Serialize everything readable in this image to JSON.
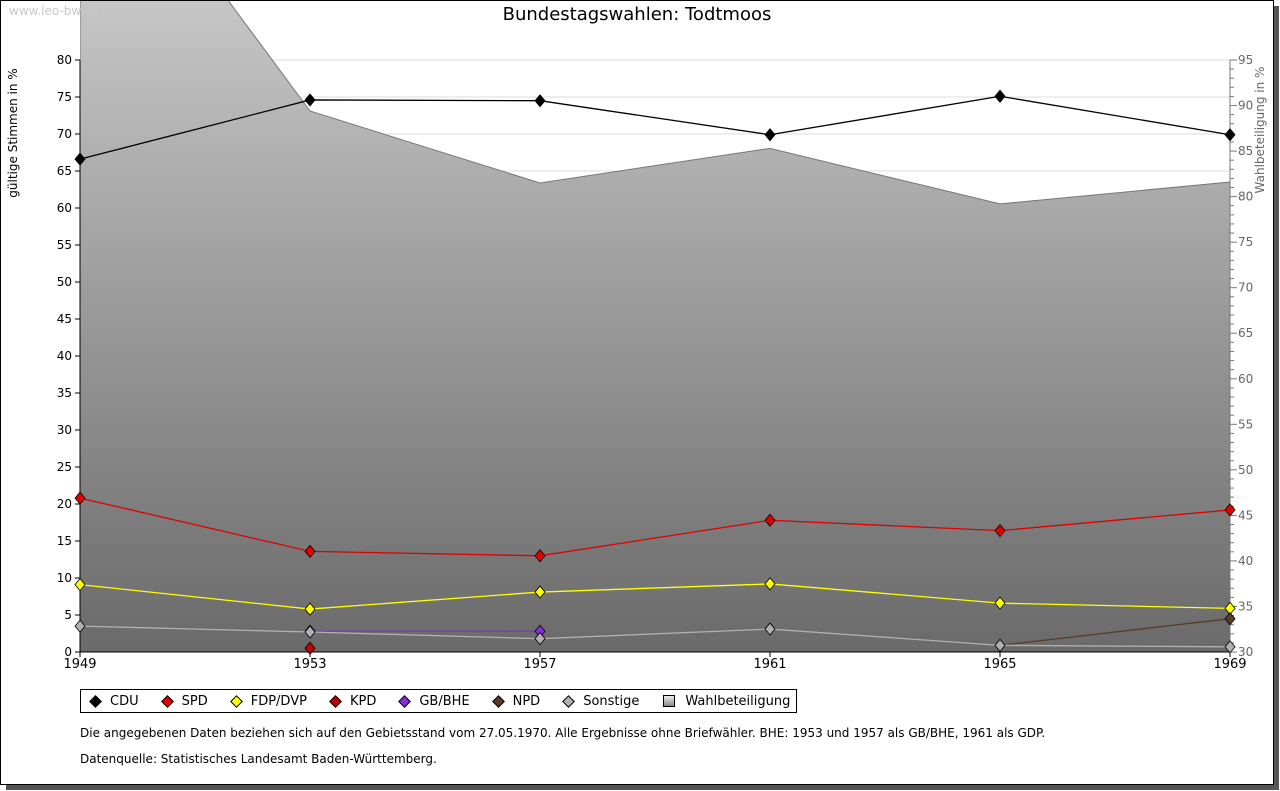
{
  "watermark": "www.leo-bw.de",
  "chart_data": {
    "type": "line",
    "title": "Bundestagswahlen: Todtmoos",
    "ylabel": "gültige Stimmen in %",
    "y2label": "Wahlbeteiligung in %",
    "ylim": [
      0,
      80
    ],
    "y2lim": [
      30,
      95
    ],
    "yticks": [
      0,
      5,
      10,
      15,
      20,
      25,
      30,
      35,
      40,
      45,
      50,
      55,
      60,
      65,
      70,
      75,
      80
    ],
    "y2ticks": [
      30,
      35,
      40,
      45,
      50,
      55,
      60,
      65,
      70,
      75,
      80,
      85,
      90,
      95
    ],
    "categories": [
      "1949",
      "1953",
      "1957",
      "1961",
      "1965",
      "1969"
    ],
    "series": [
      {
        "name": "Wahlbeteiligung",
        "axis": "right",
        "kind": "area",
        "color": "#999999",
        "values": [
          123.5,
          89.4,
          81.5,
          85.3,
          79.2,
          81.6
        ]
      },
      {
        "name": "CDU",
        "color": "#000000",
        "values": [
          66.6,
          74.6,
          74.5,
          69.9,
          75.1,
          69.9
        ]
      },
      {
        "name": "SPD",
        "color": "#e00000",
        "values": [
          20.8,
          13.6,
          13.0,
          17.8,
          16.4,
          19.2
        ]
      },
      {
        "name": "FDP/DVP",
        "color": "#ffff00",
        "values": [
          9.1,
          5.8,
          8.1,
          9.2,
          6.6,
          5.9
        ]
      },
      {
        "name": "KPD",
        "color": "#c00000",
        "values": [
          null,
          0.5,
          null,
          null,
          null,
          null
        ]
      },
      {
        "name": "GB/BHE",
        "color": "#8a2be2",
        "values": [
          null,
          2.8,
          2.8,
          null,
          null,
          null
        ]
      },
      {
        "name": "NPD",
        "color": "#5a3a28",
        "values": [
          null,
          null,
          null,
          null,
          0.9,
          4.5
        ]
      },
      {
        "name": "Sonstige",
        "color": "#b0b0b0",
        "values": [
          3.5,
          2.7,
          1.8,
          3.1,
          0.9,
          0.7
        ]
      }
    ],
    "legend": [
      "CDU",
      "SPD",
      "FDP/DVP",
      "KPD",
      "GB/BHE",
      "NPD",
      "Sonstige",
      "Wahlbeteiligung"
    ],
    "legend_position": "bottom",
    "grid": true
  },
  "notes": [
    "Die angegebenen Daten beziehen sich auf den Gebietsstand vom 27.05.1970. Alle Ergebnisse ohne Briefwähler. BHE: 1953 und 1957 als GB/BHE, 1961 als GDP.",
    "Datenquelle: Statistisches Landesamt Baden-Württemberg."
  ]
}
